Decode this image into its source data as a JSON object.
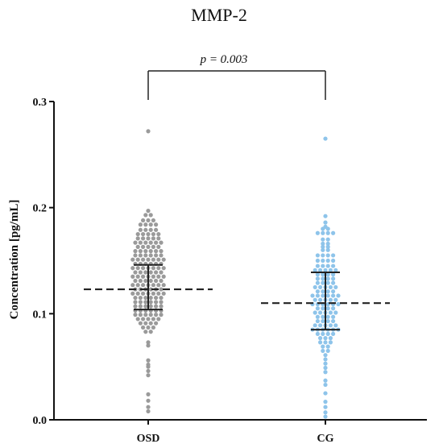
{
  "chart_data": {
    "type": "scatter",
    "title": "MMP-2",
    "xlabel": "",
    "ylabel": "Concentration [pg/mL]",
    "ylim": [
      0,
      0.3
    ],
    "yticks": [
      "0.0",
      "0.1",
      "0.2",
      "0.3"
    ],
    "categories": [
      "OSD",
      "CG"
    ],
    "grid": false,
    "annotation": "p = 0.003",
    "colors": {
      "OSD": "#9a9a9a",
      "CG": "#8ec4ea",
      "lines": "#222222"
    },
    "series": [
      {
        "category": "OSD",
        "median": 0.123,
        "q1": 0.104,
        "q3": 0.146,
        "values": [
          0.272,
          0.197,
          0.193,
          0.193,
          0.188,
          0.188,
          0.188,
          0.184,
          0.184,
          0.184,
          0.184,
          0.179,
          0.179,
          0.179,
          0.179,
          0.175,
          0.175,
          0.175,
          0.175,
          0.175,
          0.171,
          0.171,
          0.171,
          0.171,
          0.171,
          0.167,
          0.167,
          0.167,
          0.167,
          0.167,
          0.167,
          0.163,
          0.163,
          0.163,
          0.163,
          0.163,
          0.159,
          0.159,
          0.159,
          0.159,
          0.159,
          0.159,
          0.155,
          0.155,
          0.155,
          0.155,
          0.155,
          0.155,
          0.151,
          0.151,
          0.151,
          0.151,
          0.151,
          0.151,
          0.151,
          0.147,
          0.147,
          0.147,
          0.147,
          0.147,
          0.147,
          0.143,
          0.143,
          0.143,
          0.143,
          0.143,
          0.143,
          0.143,
          0.139,
          0.139,
          0.139,
          0.139,
          0.139,
          0.139,
          0.135,
          0.135,
          0.135,
          0.135,
          0.135,
          0.135,
          0.135,
          0.131,
          0.131,
          0.131,
          0.131,
          0.131,
          0.131,
          0.127,
          0.127,
          0.127,
          0.127,
          0.127,
          0.127,
          0.127,
          0.123,
          0.123,
          0.123,
          0.123,
          0.123,
          0.123,
          0.119,
          0.119,
          0.119,
          0.119,
          0.119,
          0.119,
          0.119,
          0.115,
          0.115,
          0.115,
          0.115,
          0.115,
          0.115,
          0.111,
          0.111,
          0.111,
          0.111,
          0.111,
          0.111,
          0.107,
          0.107,
          0.107,
          0.107,
          0.107,
          0.107,
          0.103,
          0.103,
          0.103,
          0.103,
          0.103,
          0.103,
          0.099,
          0.099,
          0.099,
          0.099,
          0.099,
          0.099,
          0.095,
          0.095,
          0.095,
          0.095,
          0.095,
          0.091,
          0.091,
          0.091,
          0.091,
          0.087,
          0.087,
          0.087,
          0.083,
          0.083,
          0.073,
          0.07,
          0.056,
          0.052,
          0.05,
          0.046,
          0.042,
          0.024,
          0.018,
          0.012,
          0.008
        ]
      },
      {
        "category": "CG",
        "median": 0.11,
        "q1": 0.085,
        "q3": 0.139,
        "values": [
          0.265,
          0.192,
          0.186,
          0.182,
          0.18,
          0.18,
          0.176,
          0.176,
          0.176,
          0.176,
          0.17,
          0.17,
          0.166,
          0.166,
          0.163,
          0.163,
          0.16,
          0.16,
          0.155,
          0.155,
          0.155,
          0.155,
          0.15,
          0.15,
          0.15,
          0.15,
          0.145,
          0.145,
          0.145,
          0.145,
          0.141,
          0.141,
          0.141,
          0.141,
          0.141,
          0.137,
          0.137,
          0.137,
          0.137,
          0.133,
          0.133,
          0.133,
          0.133,
          0.129,
          0.129,
          0.129,
          0.129,
          0.125,
          0.125,
          0.125,
          0.125,
          0.125,
          0.121,
          0.121,
          0.121,
          0.121,
          0.117,
          0.117,
          0.117,
          0.117,
          0.117,
          0.117,
          0.113,
          0.113,
          0.113,
          0.113,
          0.113,
          0.109,
          0.109,
          0.109,
          0.109,
          0.109,
          0.109,
          0.105,
          0.105,
          0.105,
          0.105,
          0.101,
          0.101,
          0.101,
          0.101,
          0.101,
          0.097,
          0.097,
          0.097,
          0.097,
          0.093,
          0.093,
          0.093,
          0.093,
          0.089,
          0.089,
          0.089,
          0.089,
          0.089,
          0.085,
          0.085,
          0.085,
          0.085,
          0.085,
          0.085,
          0.081,
          0.081,
          0.081,
          0.081,
          0.077,
          0.077,
          0.077,
          0.073,
          0.073,
          0.073,
          0.069,
          0.069,
          0.065,
          0.065,
          0.061,
          0.057,
          0.053,
          0.049,
          0.045,
          0.037,
          0.033,
          0.025,
          0.017,
          0.012,
          0.007,
          0.003
        ]
      }
    ]
  }
}
